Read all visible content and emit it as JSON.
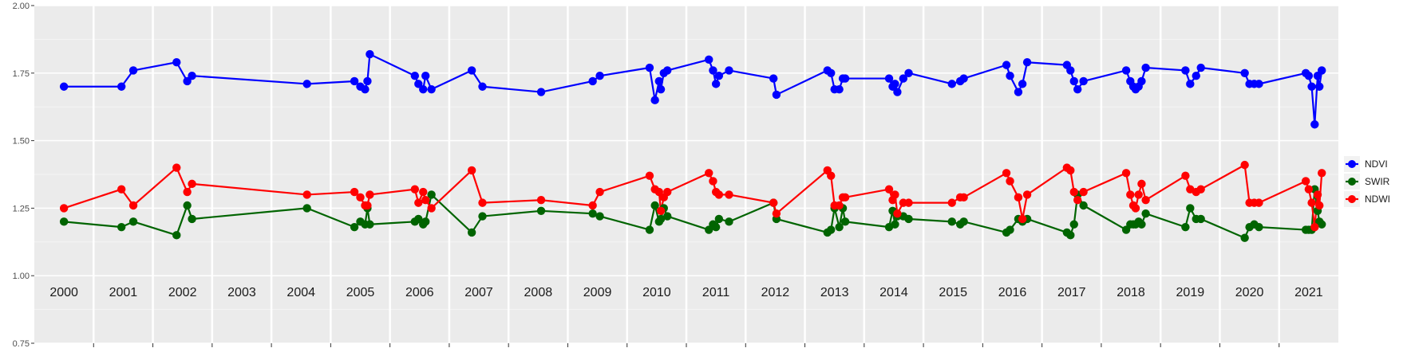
{
  "chart_data": {
    "type": "line",
    "title": "",
    "xlabel": "",
    "ylabel": "",
    "ylim": [
      0.75,
      2.0
    ],
    "yticks": [
      0.75,
      1.0,
      1.25,
      1.5,
      1.75,
      2.0
    ],
    "ytick_labels": [
      "0.75",
      "1.00",
      "1.25",
      "1.50",
      "1.75",
      "2.00"
    ],
    "xlim": [
      1999.5,
      2021.5
    ],
    "year_labels": [
      "2000",
      "2001",
      "2002",
      "2003",
      "2004",
      "2005",
      "2006",
      "2007",
      "2008",
      "2009",
      "2010",
      "2011",
      "2012",
      "2013",
      "2014",
      "2015",
      "2016",
      "2017",
      "2018",
      "2019",
      "2020",
      "2021"
    ],
    "grid": true,
    "legend_position": "right",
    "series": [
      {
        "name": "NDVI",
        "color": "#0000ff",
        "points": [
          [
            2000.0,
            1.7
          ],
          [
            2000.97,
            1.7
          ],
          [
            2001.17,
            1.76
          ],
          [
            2001.9,
            1.79
          ],
          [
            2002.08,
            1.72
          ],
          [
            2002.16,
            1.74
          ],
          [
            2004.1,
            1.71
          ],
          [
            2004.9,
            1.72
          ],
          [
            2005.0,
            1.7
          ],
          [
            2005.08,
            1.69
          ],
          [
            2005.12,
            1.72
          ],
          [
            2005.16,
            1.82
          ],
          [
            2005.92,
            1.74
          ],
          [
            2005.98,
            1.71
          ],
          [
            2006.06,
            1.69
          ],
          [
            2006.1,
            1.74
          ],
          [
            2006.2,
            1.69
          ],
          [
            2006.88,
            1.76
          ],
          [
            2007.06,
            1.7
          ],
          [
            2008.05,
            1.68
          ],
          [
            2008.92,
            1.72
          ],
          [
            2009.04,
            1.74
          ],
          [
            2009.88,
            1.77
          ],
          [
            2009.97,
            1.65
          ],
          [
            2010.04,
            1.72
          ],
          [
            2010.07,
            1.69
          ],
          [
            2010.12,
            1.75
          ],
          [
            2010.18,
            1.76
          ],
          [
            2010.88,
            1.8
          ],
          [
            2010.95,
            1.76
          ],
          [
            2011.0,
            1.71
          ],
          [
            2011.05,
            1.74
          ],
          [
            2011.22,
            1.76
          ],
          [
            2011.97,
            1.73
          ],
          [
            2012.02,
            1.67
          ],
          [
            2012.88,
            1.76
          ],
          [
            2012.94,
            1.75
          ],
          [
            2013.0,
            1.69
          ],
          [
            2013.08,
            1.69
          ],
          [
            2013.14,
            1.73
          ],
          [
            2013.18,
            1.73
          ],
          [
            2013.92,
            1.73
          ],
          [
            2013.98,
            1.7
          ],
          [
            2014.02,
            1.71
          ],
          [
            2014.06,
            1.68
          ],
          [
            2014.16,
            1.73
          ],
          [
            2014.25,
            1.75
          ],
          [
            2014.98,
            1.71
          ],
          [
            2015.12,
            1.72
          ],
          [
            2015.18,
            1.73
          ],
          [
            2015.9,
            1.78
          ],
          [
            2015.96,
            1.74
          ],
          [
            2016.1,
            1.68
          ],
          [
            2016.17,
            1.71
          ],
          [
            2016.25,
            1.79
          ],
          [
            2016.92,
            1.78
          ],
          [
            2016.98,
            1.76
          ],
          [
            2017.04,
            1.72
          ],
          [
            2017.1,
            1.69
          ],
          [
            2017.2,
            1.72
          ],
          [
            2017.92,
            1.76
          ],
          [
            2017.99,
            1.72
          ],
          [
            2018.04,
            1.7
          ],
          [
            2018.08,
            1.69
          ],
          [
            2018.13,
            1.7
          ],
          [
            2018.18,
            1.72
          ],
          [
            2018.25,
            1.77
          ],
          [
            2018.92,
            1.76
          ],
          [
            2019.0,
            1.71
          ],
          [
            2019.1,
            1.74
          ],
          [
            2019.18,
            1.77
          ],
          [
            2019.92,
            1.75
          ],
          [
            2020.0,
            1.71
          ],
          [
            2020.08,
            1.71
          ],
          [
            2020.16,
            1.71
          ],
          [
            2020.95,
            1.75
          ],
          [
            2021.0,
            1.74
          ],
          [
            2021.05,
            1.7
          ],
          [
            2021.1,
            1.56
          ],
          [
            2021.15,
            1.74
          ],
          [
            2021.18,
            1.7
          ],
          [
            2021.22,
            1.76
          ]
        ]
      },
      {
        "name": "SWIR",
        "color": "#006400",
        "points": [
          [
            2000.0,
            1.2
          ],
          [
            2000.97,
            1.18
          ],
          [
            2001.17,
            1.2
          ],
          [
            2001.9,
            1.15
          ],
          [
            2002.08,
            1.26
          ],
          [
            2002.16,
            1.21
          ],
          [
            2004.1,
            1.25
          ],
          [
            2004.9,
            1.18
          ],
          [
            2005.0,
            1.2
          ],
          [
            2005.08,
            1.19
          ],
          [
            2005.12,
            1.25
          ],
          [
            2005.16,
            1.19
          ],
          [
            2005.92,
            1.2
          ],
          [
            2005.98,
            1.21
          ],
          [
            2006.06,
            1.19
          ],
          [
            2006.1,
            1.2
          ],
          [
            2006.2,
            1.3
          ],
          [
            2006.88,
            1.16
          ],
          [
            2007.06,
            1.22
          ],
          [
            2008.05,
            1.24
          ],
          [
            2008.92,
            1.23
          ],
          [
            2009.04,
            1.22
          ],
          [
            2009.88,
            1.17
          ],
          [
            2009.97,
            1.26
          ],
          [
            2010.04,
            1.2
          ],
          [
            2010.07,
            1.21
          ],
          [
            2010.12,
            1.25
          ],
          [
            2010.18,
            1.22
          ],
          [
            2010.88,
            1.17
          ],
          [
            2010.95,
            1.19
          ],
          [
            2011.0,
            1.18
          ],
          [
            2011.05,
            1.21
          ],
          [
            2011.22,
            1.2
          ],
          [
            2011.97,
            1.27
          ],
          [
            2012.02,
            1.21
          ],
          [
            2012.88,
            1.16
          ],
          [
            2012.94,
            1.17
          ],
          [
            2013.0,
            1.25
          ],
          [
            2013.08,
            1.18
          ],
          [
            2013.14,
            1.25
          ],
          [
            2013.18,
            1.2
          ],
          [
            2013.92,
            1.18
          ],
          [
            2013.98,
            1.24
          ],
          [
            2014.02,
            1.19
          ],
          [
            2014.06,
            1.22
          ],
          [
            2014.16,
            1.22
          ],
          [
            2014.25,
            1.21
          ],
          [
            2014.98,
            1.2
          ],
          [
            2015.12,
            1.19
          ],
          [
            2015.18,
            1.2
          ],
          [
            2015.9,
            1.16
          ],
          [
            2015.96,
            1.17
          ],
          [
            2016.1,
            1.21
          ],
          [
            2016.17,
            1.2
          ],
          [
            2016.25,
            1.21
          ],
          [
            2016.92,
            1.16
          ],
          [
            2016.98,
            1.15
          ],
          [
            2017.04,
            1.19
          ],
          [
            2017.1,
            1.3
          ],
          [
            2017.2,
            1.26
          ],
          [
            2017.92,
            1.17
          ],
          [
            2017.99,
            1.19
          ],
          [
            2018.04,
            1.19
          ],
          [
            2018.08,
            1.19
          ],
          [
            2018.13,
            1.2
          ],
          [
            2018.18,
            1.19
          ],
          [
            2018.25,
            1.23
          ],
          [
            2018.92,
            1.18
          ],
          [
            2019.0,
            1.25
          ],
          [
            2019.1,
            1.21
          ],
          [
            2019.18,
            1.21
          ],
          [
            2019.92,
            1.14
          ],
          [
            2020.0,
            1.18
          ],
          [
            2020.08,
            1.19
          ],
          [
            2020.16,
            1.18
          ],
          [
            2020.95,
            1.17
          ],
          [
            2021.0,
            1.17
          ],
          [
            2021.05,
            1.17
          ],
          [
            2021.1,
            1.32
          ],
          [
            2021.15,
            1.24
          ],
          [
            2021.18,
            1.2
          ],
          [
            2021.22,
            1.19
          ]
        ]
      },
      {
        "name": "NDWI",
        "color": "#ff0000",
        "points": [
          [
            2000.0,
            1.25
          ],
          [
            2000.97,
            1.32
          ],
          [
            2001.17,
            1.26
          ],
          [
            2001.9,
            1.4
          ],
          [
            2002.08,
            1.31
          ],
          [
            2002.16,
            1.34
          ],
          [
            2004.1,
            1.3
          ],
          [
            2004.9,
            1.31
          ],
          [
            2005.0,
            1.29
          ],
          [
            2005.08,
            1.26
          ],
          [
            2005.12,
            1.26
          ],
          [
            2005.16,
            1.3
          ],
          [
            2005.92,
            1.32
          ],
          [
            2005.98,
            1.27
          ],
          [
            2006.06,
            1.31
          ],
          [
            2006.1,
            1.28
          ],
          [
            2006.2,
            1.25
          ],
          [
            2006.88,
            1.39
          ],
          [
            2007.06,
            1.27
          ],
          [
            2008.05,
            1.28
          ],
          [
            2008.92,
            1.26
          ],
          [
            2009.04,
            1.31
          ],
          [
            2009.88,
            1.37
          ],
          [
            2009.97,
            1.32
          ],
          [
            2010.04,
            1.31
          ],
          [
            2010.07,
            1.24
          ],
          [
            2010.12,
            1.29
          ],
          [
            2010.18,
            1.31
          ],
          [
            2010.88,
            1.38
          ],
          [
            2010.95,
            1.35
          ],
          [
            2011.0,
            1.31
          ],
          [
            2011.05,
            1.3
          ],
          [
            2011.22,
            1.3
          ],
          [
            2011.97,
            1.27
          ],
          [
            2012.02,
            1.23
          ],
          [
            2012.88,
            1.39
          ],
          [
            2012.94,
            1.37
          ],
          [
            2013.0,
            1.26
          ],
          [
            2013.08,
            1.26
          ],
          [
            2013.14,
            1.29
          ],
          [
            2013.18,
            1.29
          ],
          [
            2013.92,
            1.32
          ],
          [
            2013.98,
            1.28
          ],
          [
            2014.02,
            1.3
          ],
          [
            2014.06,
            1.23
          ],
          [
            2014.16,
            1.27
          ],
          [
            2014.25,
            1.27
          ],
          [
            2014.98,
            1.27
          ],
          [
            2015.12,
            1.29
          ],
          [
            2015.18,
            1.29
          ],
          [
            2015.9,
            1.38
          ],
          [
            2015.96,
            1.35
          ],
          [
            2016.1,
            1.29
          ],
          [
            2016.17,
            1.21
          ],
          [
            2016.25,
            1.3
          ],
          [
            2016.92,
            1.4
          ],
          [
            2016.98,
            1.39
          ],
          [
            2017.04,
            1.31
          ],
          [
            2017.1,
            1.28
          ],
          [
            2017.2,
            1.31
          ],
          [
            2017.92,
            1.38
          ],
          [
            2017.99,
            1.3
          ],
          [
            2018.04,
            1.26
          ],
          [
            2018.08,
            1.25
          ],
          [
            2018.13,
            1.3
          ],
          [
            2018.18,
            1.34
          ],
          [
            2018.25,
            1.28
          ],
          [
            2018.92,
            1.37
          ],
          [
            2019.0,
            1.32
          ],
          [
            2019.1,
            1.31
          ],
          [
            2019.18,
            1.32
          ],
          [
            2019.92,
            1.41
          ],
          [
            2020.0,
            1.27
          ],
          [
            2020.08,
            1.27
          ],
          [
            2020.16,
            1.27
          ],
          [
            2020.95,
            1.35
          ],
          [
            2021.0,
            1.32
          ],
          [
            2021.05,
            1.27
          ],
          [
            2021.1,
            1.18
          ],
          [
            2021.15,
            1.3
          ],
          [
            2021.18,
            1.26
          ],
          [
            2021.22,
            1.38
          ]
        ]
      }
    ]
  }
}
